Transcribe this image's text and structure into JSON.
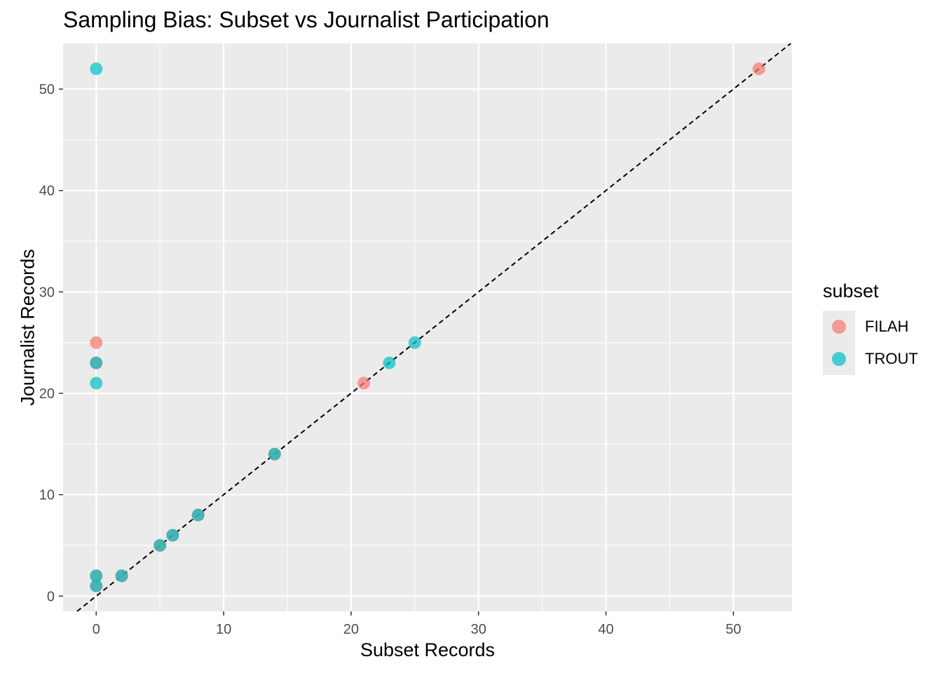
{
  "chart_data": {
    "type": "scatter",
    "title": "Sampling Bias: Subset vs Journalist Participation",
    "xlabel": "Subset Records",
    "ylabel": "Journalist Records",
    "xlim": [
      -2.6,
      54.6
    ],
    "ylim": [
      -1.5,
      54.5
    ],
    "x_ticks": [
      0,
      10,
      20,
      30,
      40,
      50
    ],
    "y_ticks": [
      0,
      10,
      20,
      30,
      40,
      50
    ],
    "grid": true,
    "reference_line": {
      "type": "identity",
      "style": "dashed",
      "color": "#000000"
    },
    "legend": {
      "title": "subset",
      "placement": "right"
    },
    "series": [
      {
        "name": "FILAH",
        "color": "#F8766D",
        "points": [
          [
            52,
            52
          ],
          [
            0,
            25
          ],
          [
            21,
            21
          ],
          [
            0,
            23
          ],
          [
            14,
            14
          ],
          [
            8,
            8
          ],
          [
            6,
            6
          ],
          [
            5,
            5
          ],
          [
            2,
            2
          ],
          [
            0,
            2
          ],
          [
            0,
            1
          ]
        ]
      },
      {
        "name": "TROUT",
        "color": "#00BFC4",
        "points": [
          [
            0,
            52
          ],
          [
            25,
            25
          ],
          [
            23,
            23
          ],
          [
            0,
            21
          ],
          [
            0,
            23
          ],
          [
            14,
            14
          ],
          [
            8,
            8
          ],
          [
            6,
            6
          ],
          [
            5,
            5
          ],
          [
            2,
            2
          ],
          [
            0,
            2
          ],
          [
            0,
            1
          ]
        ]
      }
    ]
  }
}
